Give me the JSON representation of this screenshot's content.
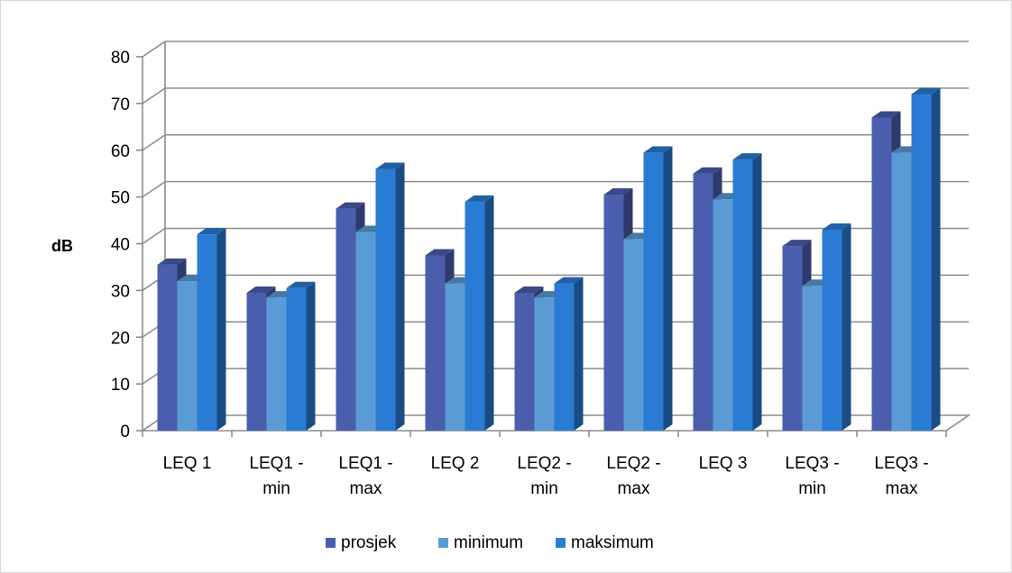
{
  "chart_data": {
    "type": "bar",
    "style": "3d-clustered-column",
    "title": "",
    "xlabel": "",
    "ylabel": "dB",
    "ylim": [
      0,
      80
    ],
    "y_ticks": [
      0,
      10,
      20,
      30,
      40,
      50,
      60,
      70,
      80
    ],
    "grid": true,
    "legend_position": "bottom",
    "categories": [
      [
        "LEQ 1"
      ],
      [
        "LEQ1 -",
        "min"
      ],
      [
        "LEQ1 -",
        "max"
      ],
      [
        "LEQ 2"
      ],
      [
        "LEQ2 -",
        "min"
      ],
      [
        "LEQ2 -",
        "max"
      ],
      [
        "LEQ 3"
      ],
      [
        "LEQ3 -",
        "min"
      ],
      [
        "LEQ3 -",
        "max"
      ]
    ],
    "series": [
      {
        "name": "prosjek",
        "color": "#4A5EAD",
        "values": [
          35.5,
          29.5,
          47.5,
          37.5,
          29.5,
          50.5,
          55,
          39.5,
          67
        ]
      },
      {
        "name": "minimum",
        "color": "#5B9BD5",
        "values": [
          32,
          28.5,
          42.5,
          31.5,
          28.5,
          41,
          49.5,
          31,
          59.5
        ]
      },
      {
        "name": "maksimum",
        "color": "#2A7BD3",
        "values": [
          42,
          30.5,
          56,
          49,
          31.5,
          59.5,
          58,
          43,
          72
        ]
      }
    ]
  }
}
